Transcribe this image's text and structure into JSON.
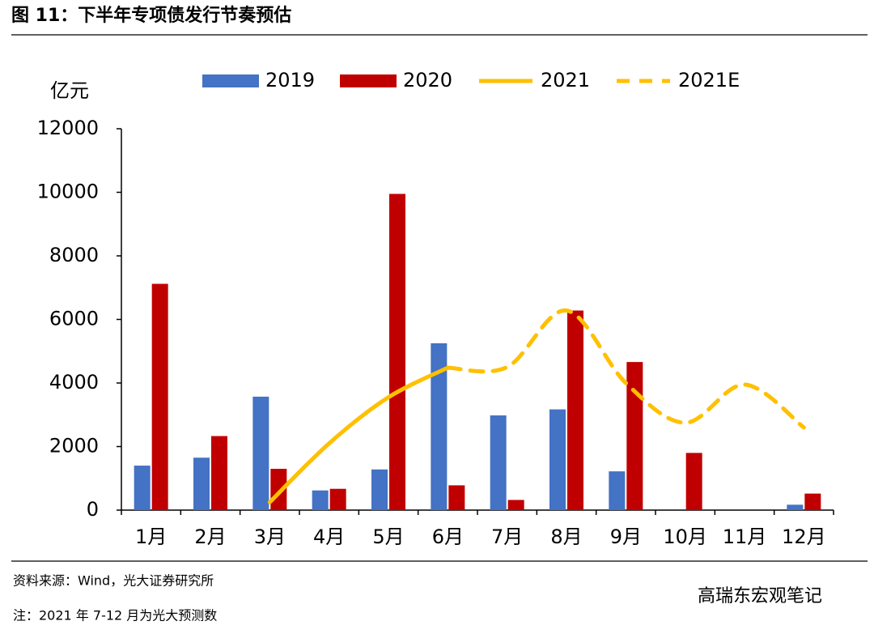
{
  "title": "图 11：下半年专项债发行节奏预估",
  "chart_data": {
    "type": "bar",
    "y_label": "亿元",
    "categories": [
      "1月",
      "2月",
      "3月",
      "4月",
      "5月",
      "6月",
      "7月",
      "8月",
      "9月",
      "10月",
      "11月",
      "12月"
    ],
    "series": [
      {
        "name": "2019",
        "kind": "bar",
        "color": "#4472c4",
        "values": [
          1400,
          1650,
          3570,
          620,
          1280,
          5250,
          2980,
          3170,
          1220,
          null,
          null,
          170
        ]
      },
      {
        "name": "2020",
        "kind": "bar",
        "color": "#c00000",
        "values": [
          7120,
          2330,
          1300,
          670,
          9950,
          780,
          320,
          6280,
          4660,
          1800,
          null,
          520
        ]
      },
      {
        "name": "2021",
        "kind": "line",
        "dashed": false,
        "color": "#ffc000",
        "values": [
          null,
          null,
          250,
          2100,
          3550,
          4480,
          null,
          null,
          null,
          null,
          null,
          null
        ]
      },
      {
        "name": "2021E",
        "kind": "line",
        "dashed": true,
        "color": "#ffc000",
        "values": [
          null,
          null,
          null,
          null,
          null,
          4480,
          4500,
          6280,
          4000,
          2750,
          3950,
          2600
        ]
      }
    ],
    "ylim": [
      0,
      12000
    ],
    "yticks": [
      0,
      2000,
      4000,
      6000,
      8000,
      10000,
      12000
    ],
    "grid": false
  },
  "source": "资料来源：Wind，光大证券研究所",
  "note": "注：2021 年 7-12 月为光大预测数",
  "watermark": "高瑞东宏观笔记"
}
